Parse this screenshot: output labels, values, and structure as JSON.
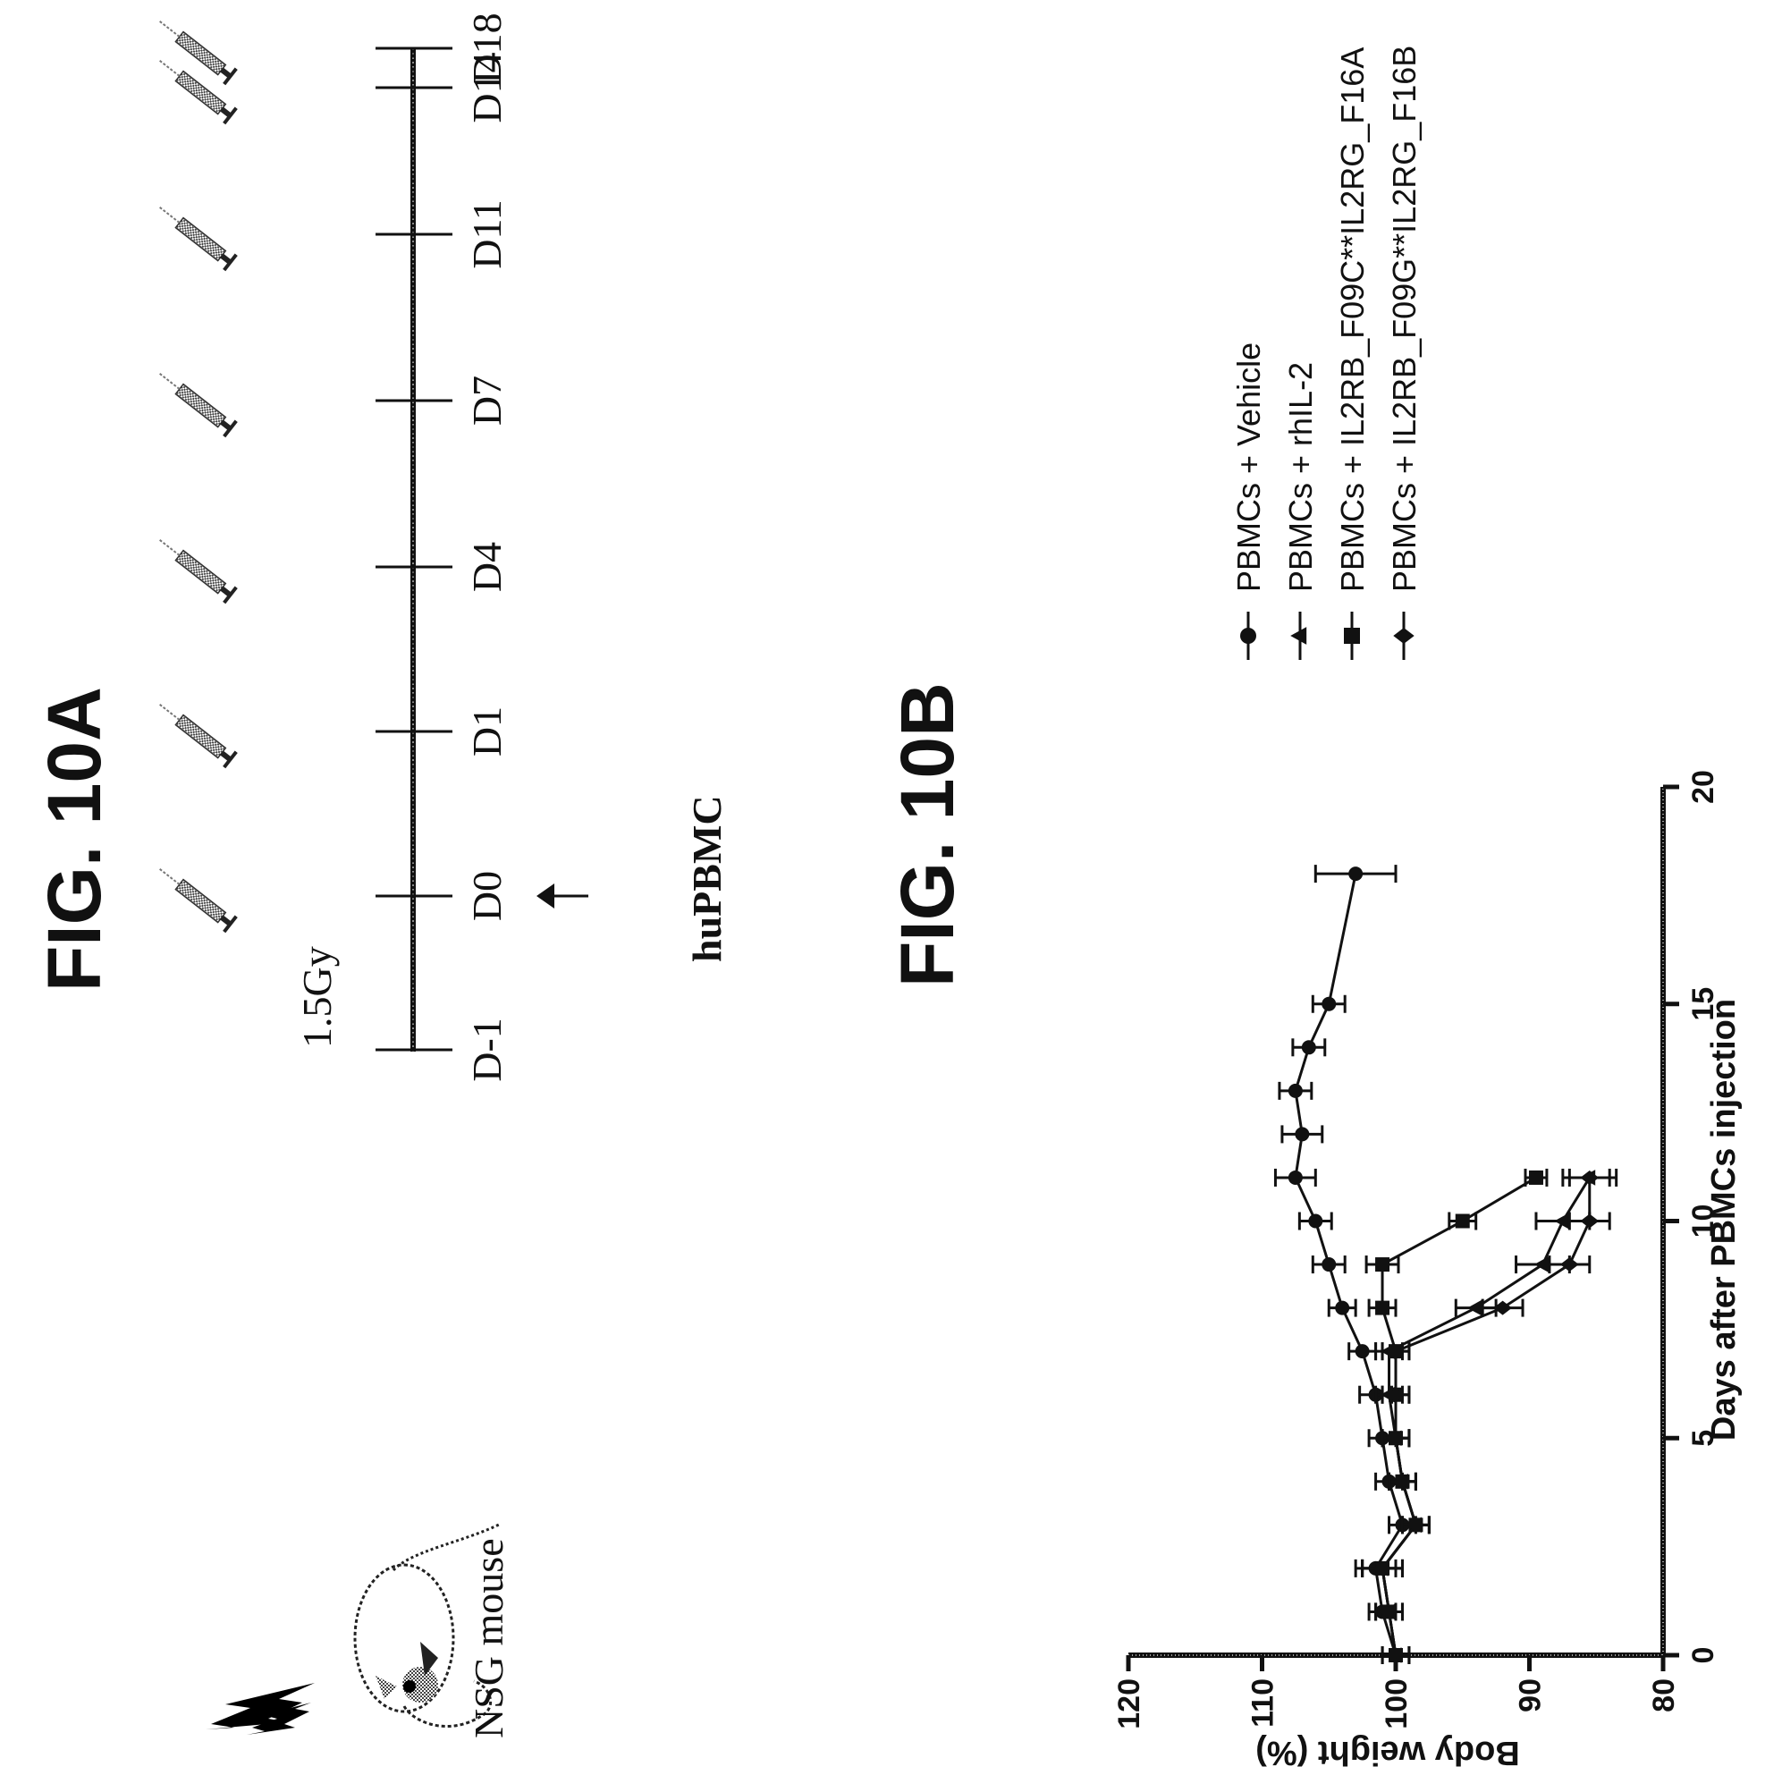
{
  "figure_a": {
    "title": "FIG. 10A",
    "mouse_label": "NSG mouse",
    "irradiation_label": "1.5Gy",
    "cell_injection_label": "huPBMC",
    "day_labels": [
      "D-1",
      "D0",
      "D1",
      "D4",
      "D7",
      "D11",
      "D14",
      "D18"
    ],
    "icons": {
      "irradiation": "lightning-icon",
      "mouse": "mouse-icon",
      "dose": "syringe-icon",
      "injection": "arrow-icon"
    }
  },
  "figure_b": {
    "title": "FIG. 10B"
  },
  "chart_data": {
    "type": "line",
    "title": "",
    "xlabel": "Days after PBMCs injection",
    "ylabel": "Body weight (%)",
    "xlim": [
      0,
      20
    ],
    "ylim": [
      80,
      120
    ],
    "x_ticks": [
      0,
      5,
      10,
      15,
      20
    ],
    "y_ticks": [
      80,
      90,
      100,
      110,
      120
    ],
    "grid": false,
    "legend_position": "right",
    "series": [
      {
        "name": "PBMCs + Vehicle",
        "marker": "circle",
        "x": [
          0,
          1,
          2,
          3,
          4,
          5,
          6,
          7,
          8,
          9,
          10,
          11,
          12,
          13,
          14,
          15,
          18
        ],
        "y": [
          100,
          101,
          101.5,
          99.5,
          100.5,
          101,
          101.5,
          102.5,
          104,
          105,
          106,
          107.5,
          107,
          107.5,
          106.5,
          105,
          103
        ],
        "err": [
          1,
          1,
          1.5,
          1,
          1,
          1,
          1.2,
          1,
          1,
          1.2,
          1.2,
          1.5,
          1.5,
          1.2,
          1.2,
          1.2,
          3
        ]
      },
      {
        "name": "PBMCs + rhIL-2",
        "marker": "triangle",
        "x": [
          0,
          1,
          2,
          3,
          4,
          5,
          6,
          7,
          8,
          9,
          10,
          11
        ],
        "y": [
          100,
          100.5,
          101,
          98.5,
          99.5,
          100,
          100.5,
          100.5,
          94,
          89,
          87.5,
          85.5
        ],
        "err": [
          1,
          1,
          1.5,
          1,
          1,
          1,
          1,
          1,
          1.5,
          2,
          2,
          2
        ]
      },
      {
        "name": "PBMCs + IL2RB_F09C**IL2RG_F16A",
        "marker": "square",
        "x": [
          0,
          1,
          2,
          3,
          4,
          5,
          6,
          7,
          8,
          9,
          10,
          11
        ],
        "y": [
          100,
          100.5,
          101,
          98.5,
          99.5,
          100,
          100,
          100,
          101,
          101,
          95,
          89.5
        ],
        "err": [
          1,
          1,
          1.5,
          1,
          1,
          1,
          1,
          1,
          1,
          1.2,
          1,
          0.8
        ]
      },
      {
        "name": "PBMCs + IL2RB_F09G**IL2RG_F16B",
        "marker": "diamond",
        "x": [
          0,
          1,
          2,
          3,
          4,
          5,
          6,
          7,
          8,
          9,
          10,
          11
        ],
        "y": [
          100,
          100.5,
          101,
          98.5,
          99.5,
          100,
          100,
          100,
          92,
          87,
          85.5,
          85.5
        ],
        "err": [
          1,
          1,
          1.5,
          1,
          1,
          1,
          1,
          1,
          1.5,
          1.5,
          1.5,
          1.5
        ]
      }
    ]
  }
}
